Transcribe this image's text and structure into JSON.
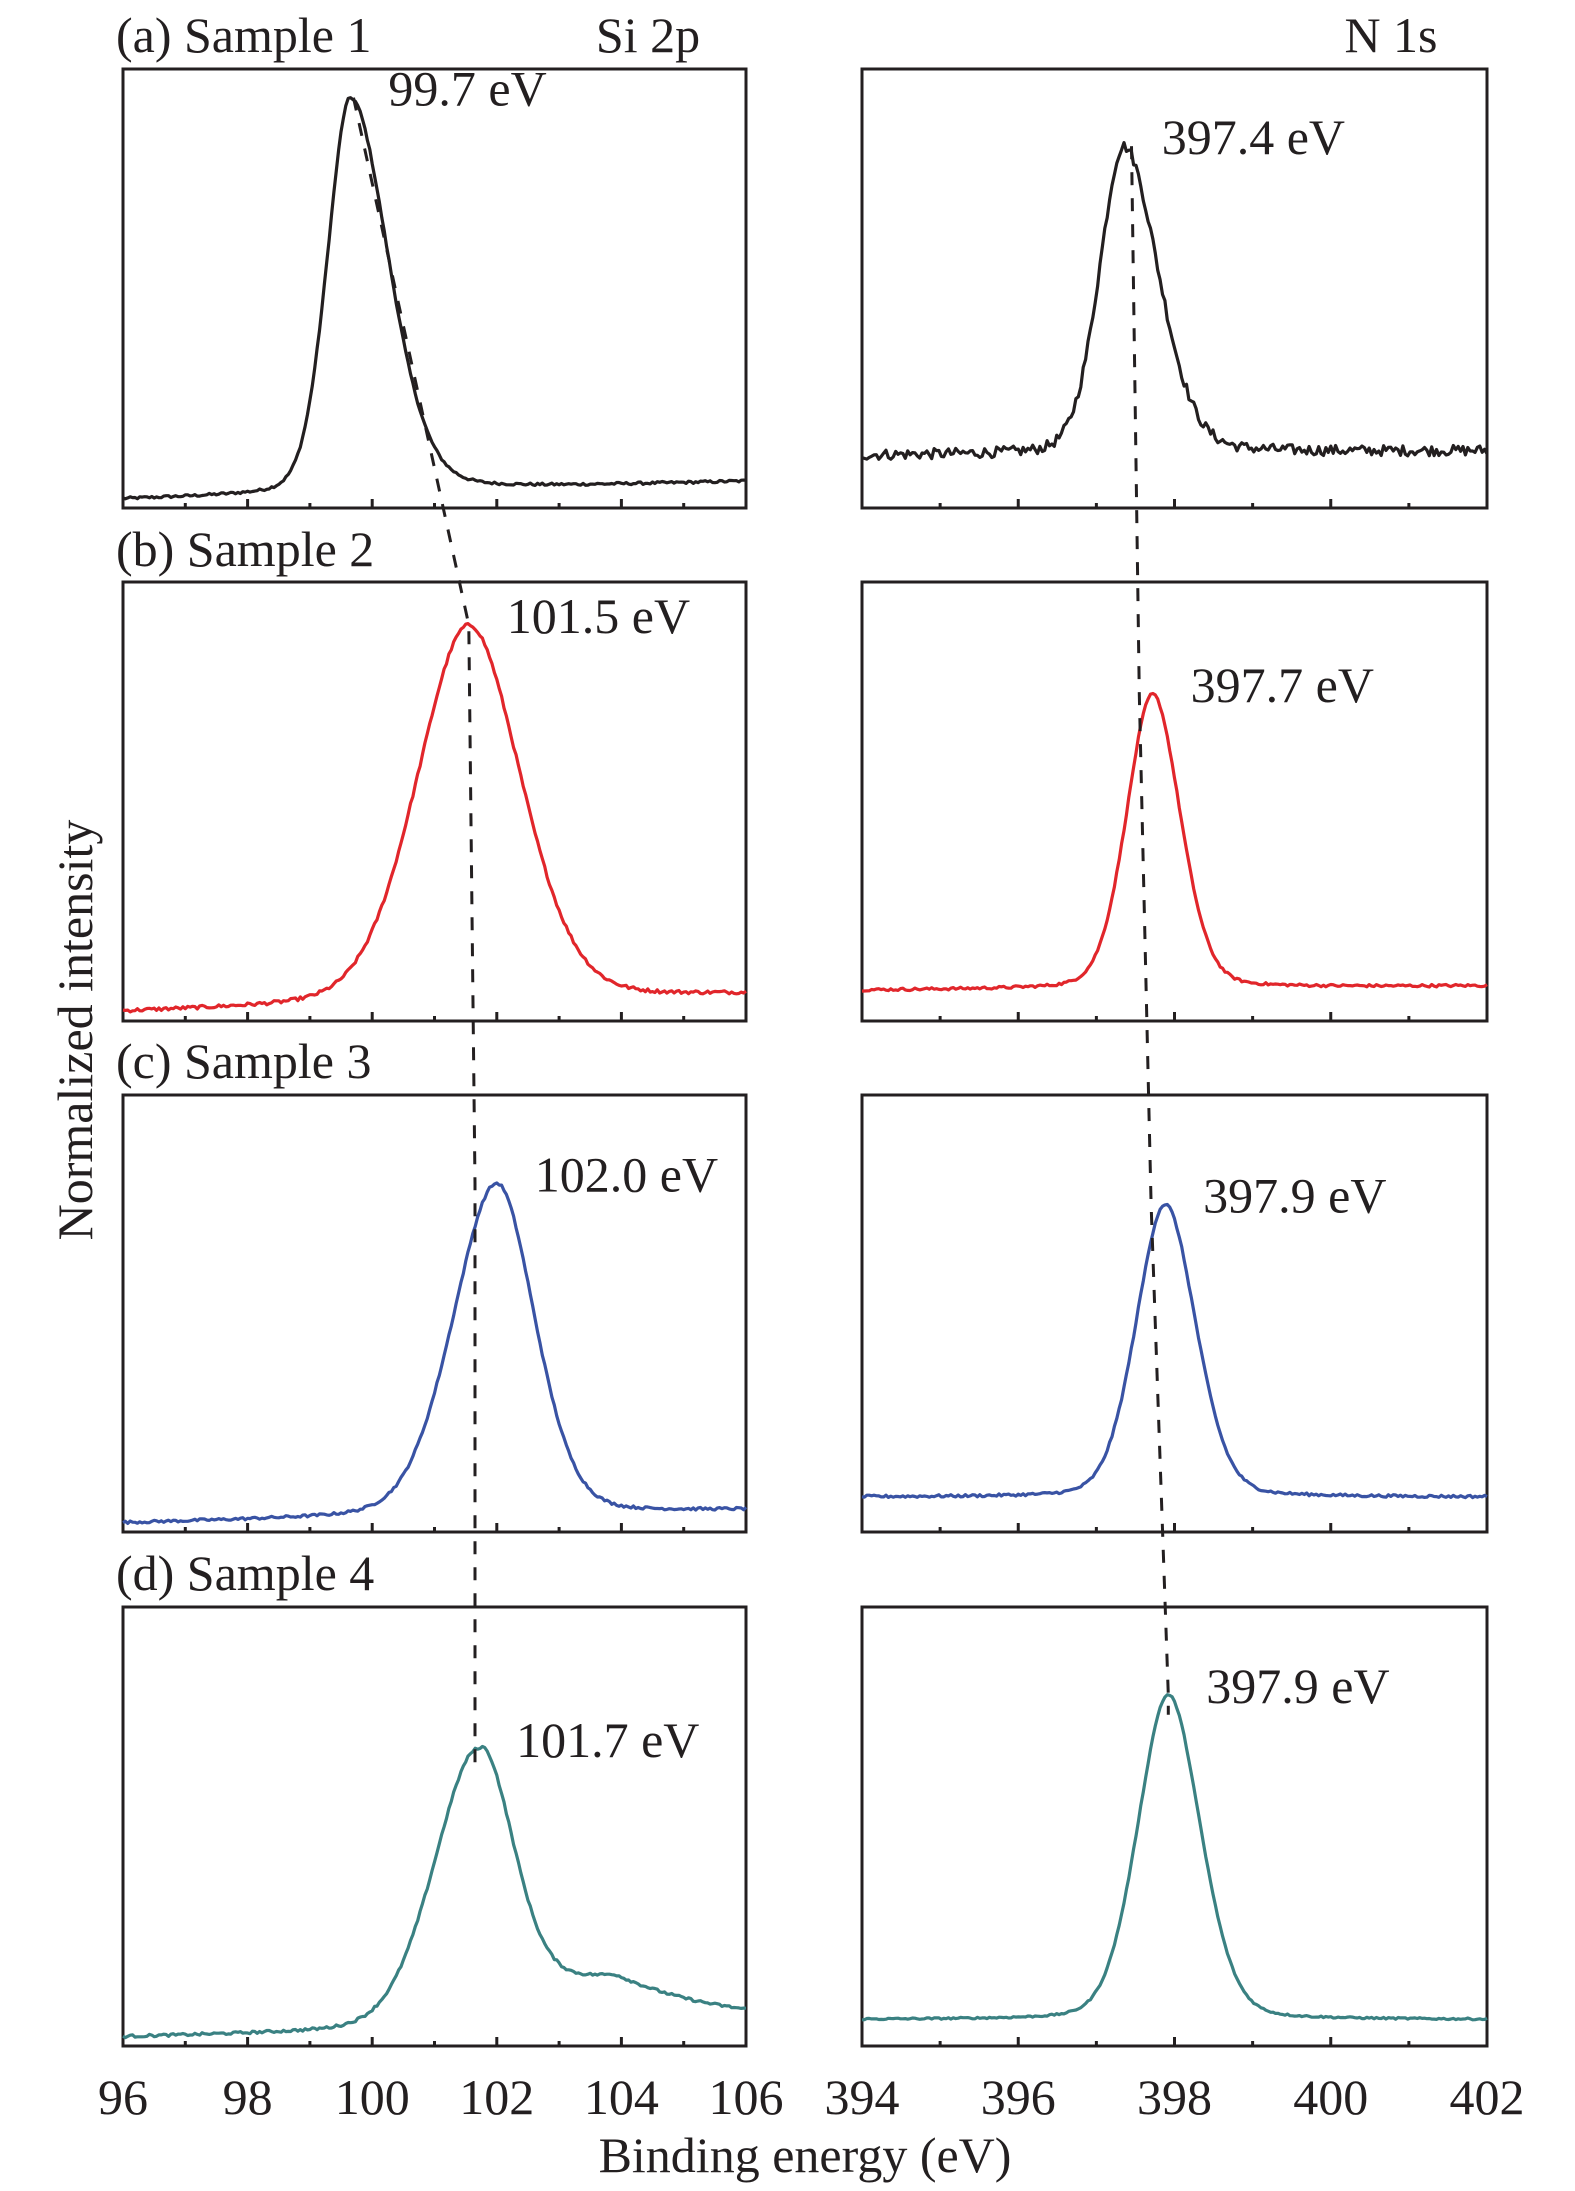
{
  "chart_data": {
    "type": "line",
    "title": "",
    "xlabel": "Binding energy (eV)",
    "ylabel": "Normalized intensity",
    "columns": [
      {
        "name": "Si 2p",
        "xlim": [
          96,
          106
        ],
        "x_ticks": [
          96,
          98,
          100,
          102,
          104,
          106
        ],
        "minor_step": 1
      },
      {
        "name": "N 1s",
        "xlim": [
          394,
          402
        ],
        "x_ticks": [
          394,
          396,
          398,
          400,
          402
        ],
        "minor_step": 1
      }
    ],
    "ylim": [
      0,
      1
    ],
    "yticks_visible": false,
    "grid": false,
    "legend": "none",
    "samples": [
      {
        "label": "(a) Sample 1",
        "color": "#231f20",
        "si2p": {
          "peak_eV": 99.7,
          "label": "99.7 eV",
          "center": 99.65,
          "height": 0.9,
          "sigma_left": 0.38,
          "sigma_right": 0.62,
          "baseline_left": 0.02,
          "baseline_right": 0.06,
          "noise": 0.003,
          "tail": 0.0
        },
        "n1s": {
          "peak_eV": 397.4,
          "label": "397.4 eV",
          "center": 397.35,
          "height": 0.7,
          "sigma_left": 0.32,
          "sigma_right": 0.45,
          "baseline_left": 0.12,
          "baseline_right": 0.13,
          "noise": 0.012,
          "tail": 0.0
        }
      },
      {
        "label": "(b) Sample 2",
        "color": "#e1262b",
        "si2p": {
          "peak_eV": 101.5,
          "label": "101.5 eV",
          "center": 101.55,
          "height": 0.86,
          "sigma_left": 0.85,
          "sigma_right": 0.85,
          "baseline_left": 0.02,
          "baseline_right": 0.06,
          "noise": 0.004,
          "tail": 0.0
        },
        "n1s": {
          "peak_eV": 397.7,
          "label": "397.7 eV",
          "center": 397.72,
          "height": 0.67,
          "sigma_left": 0.34,
          "sigma_right": 0.36,
          "baseline_left": 0.07,
          "baseline_right": 0.08,
          "noise": 0.003,
          "tail": 0.0
        }
      },
      {
        "label": "(c) Sample 3",
        "color": "#3953a4",
        "si2p": {
          "peak_eV": 102.0,
          "label": "102.0 eV",
          "center": 102.0,
          "height": 0.76,
          "sigma_left": 0.72,
          "sigma_right": 0.62,
          "baseline_left": 0.02,
          "baseline_right": 0.05,
          "noise": 0.003,
          "tail": 0.0
        },
        "n1s": {
          "peak_eV": 397.9,
          "label": "397.9 eV",
          "center": 397.88,
          "height": 0.67,
          "sigma_left": 0.38,
          "sigma_right": 0.4,
          "baseline_left": 0.08,
          "baseline_right": 0.08,
          "noise": 0.003,
          "tail": 0.0
        }
      },
      {
        "label": "(d) Sample 4",
        "color": "#3a8182",
        "si2p": {
          "peak_eV": 101.7,
          "label": "101.7 eV",
          "center": 101.7,
          "height": 0.64,
          "sigma_left": 0.72,
          "sigma_right": 0.55,
          "baseline_left": 0.02,
          "baseline_right": 0.05,
          "noise": 0.003,
          "tail": 0.12
        },
        "n1s": {
          "peak_eV": 397.9,
          "label": "397.9 eV",
          "center": 397.92,
          "height": 0.74,
          "sigma_left": 0.4,
          "sigma_right": 0.42,
          "baseline_left": 0.06,
          "baseline_right": 0.06,
          "noise": 0.002,
          "tail": 0.0
        }
      }
    ],
    "guide_lines": {
      "style": "dashed",
      "si2p_path_eV": [
        99.7,
        101.55,
        101.65,
        101.65
      ],
      "n1s_path_eV": [
        397.45,
        397.55,
        397.7,
        397.92
      ]
    }
  }
}
